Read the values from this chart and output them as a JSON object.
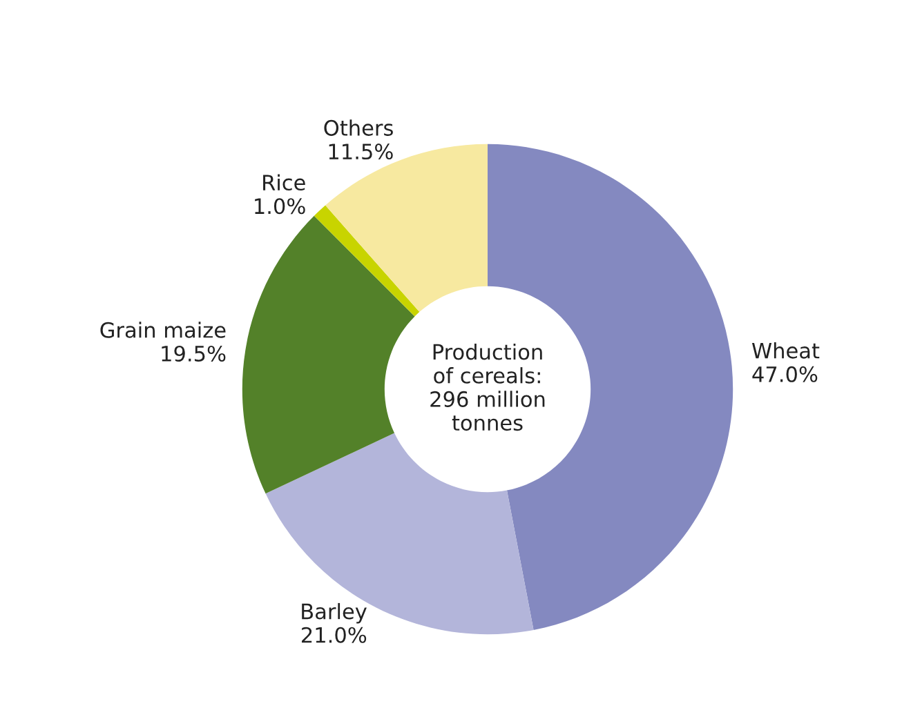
{
  "chart_data": {
    "type": "donut",
    "categories": [
      "Wheat",
      "Barley",
      "Grain maize",
      "Rice",
      "Others"
    ],
    "values": [
      47.0,
      21.0,
      19.5,
      1.0,
      11.5
    ],
    "value_labels": [
      "47.0%",
      "21.0%",
      "19.5%",
      "1.0%",
      "11.5%"
    ],
    "colors": [
      "#8489c0",
      "#b3b5da",
      "#538129",
      "#c8d400",
      "#f7e9a0"
    ],
    "annotations": [
      "Production\nof cereals:\n296 million\ntonnes"
    ],
    "legend": false
  }
}
